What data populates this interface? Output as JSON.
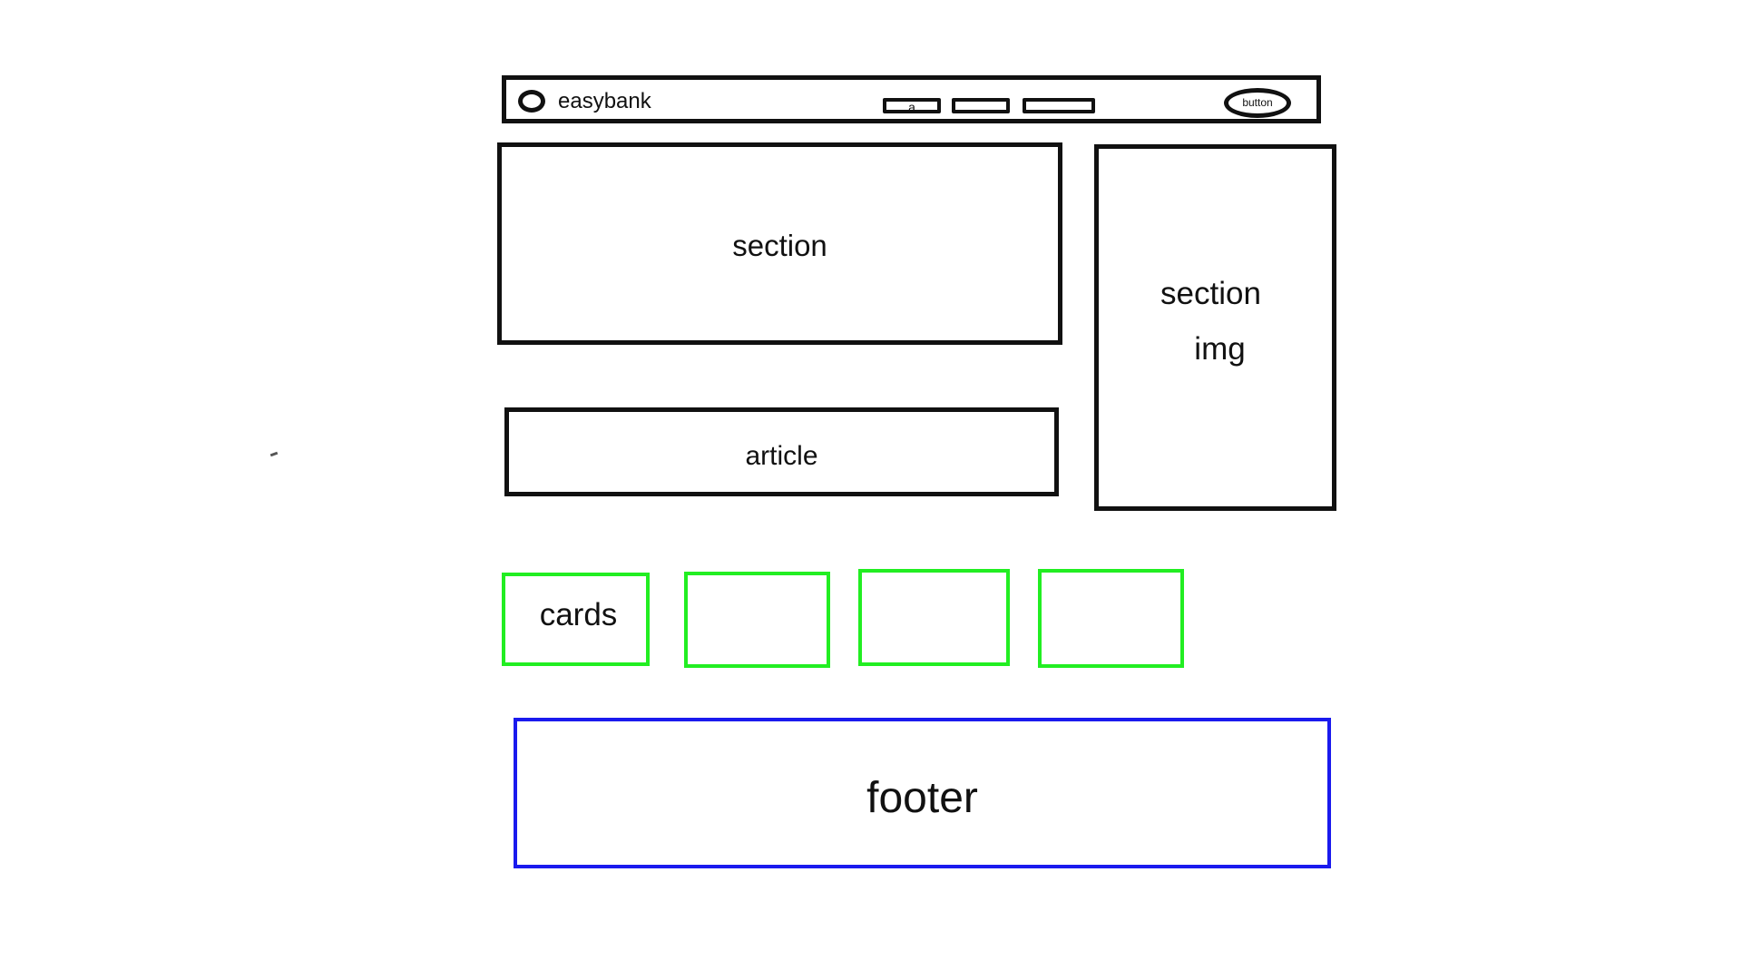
{
  "header": {
    "logo_text": "easybank",
    "nav_links": [
      "a",
      "",
      ""
    ],
    "button_label": "button"
  },
  "section_main": {
    "label": "section"
  },
  "section_side": {
    "label_line1": "section",
    "label_line2": "img"
  },
  "article": {
    "label": "article"
  },
  "cards": [
    {
      "label": "cards"
    },
    {
      "label": ""
    },
    {
      "label": ""
    },
    {
      "label": ""
    }
  ],
  "footer": {
    "label": "footer"
  },
  "colors": {
    "outline": "#111111",
    "cards_outline": "#22ee22",
    "footer_outline": "#1a1aee"
  }
}
